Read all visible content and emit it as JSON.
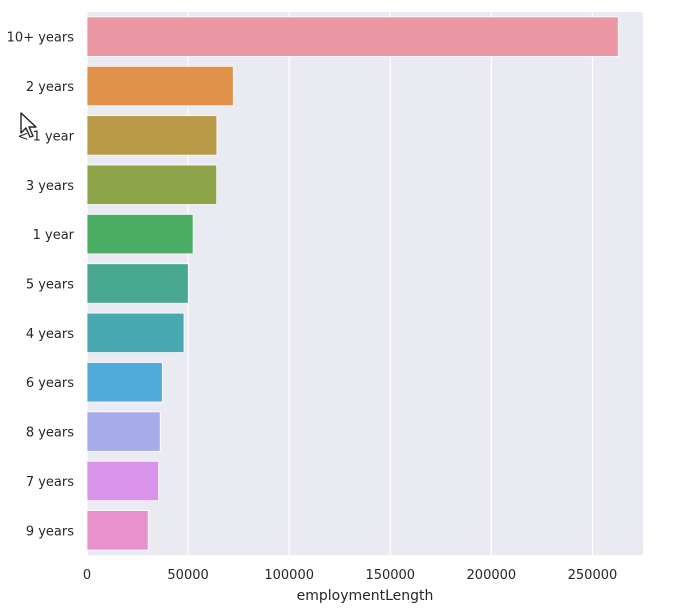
{
  "chart_data": {
    "type": "bar",
    "orientation": "horizontal",
    "xlabel": "employmentLength",
    "ylabel": "",
    "xlim": [
      0,
      275000
    ],
    "xticks": [
      0,
      50000,
      100000,
      150000,
      200000,
      250000
    ],
    "grid": true,
    "bars": [
      {
        "category": "10+ years",
        "value": 262753,
        "color": "#ea96a3"
      },
      {
        "category": "2 years",
        "value": 72358,
        "color": "#e0924b"
      },
      {
        "category": "< 1 year",
        "value": 64237,
        "color": "#b89a47"
      },
      {
        "category": "3 years",
        "value": 64152,
        "color": "#8ea448"
      },
      {
        "category": "1 year",
        "value": 52489,
        "color": "#4aad63"
      },
      {
        "category": "5 years",
        "value": 50102,
        "color": "#48a890"
      },
      {
        "category": "4 years",
        "value": 47985,
        "color": "#4aa8b0"
      },
      {
        "category": "6 years",
        "value": 37254,
        "color": "#52aadb"
      },
      {
        "category": "8 years",
        "value": 36192,
        "color": "#a6abea"
      },
      {
        "category": "7 years",
        "value": 35407,
        "color": "#d993e8"
      },
      {
        "category": "9 years",
        "value": 30272,
        "color": "#e891cc"
      }
    ]
  },
  "colors": {
    "plot_background": "#eaeaf2",
    "grid": "#ffffff",
    "text": "#262626"
  },
  "overlay": {
    "cursor_icon": "arrow-pointer-icon"
  }
}
